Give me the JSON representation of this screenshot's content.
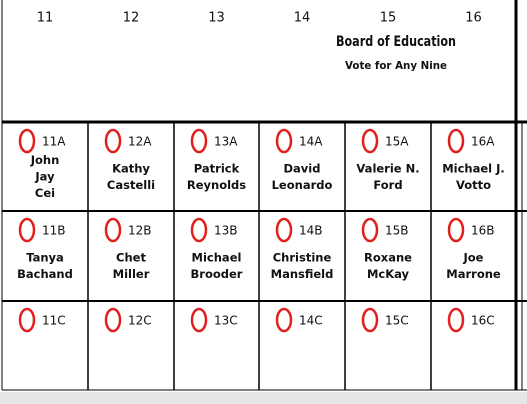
{
  "ballot": {
    "title": "Board of Education",
    "subtitle": "Vote for Any Nine",
    "columns": [
      {
        "number": "11",
        "cells": [
          {
            "code": "11A",
            "name": [
              "John",
              "Jay",
              "Cei"
            ]
          },
          {
            "code": "11B",
            "name": [
              "Tanya",
              "Bachand"
            ]
          },
          {
            "code": "11C",
            "name": []
          }
        ]
      },
      {
        "number": "12",
        "cells": [
          {
            "code": "12A",
            "name": [
              "Kathy",
              "Castelli"
            ]
          },
          {
            "code": "12B",
            "name": [
              "Chet",
              "Miller"
            ]
          },
          {
            "code": "12C",
            "name": []
          }
        ]
      },
      {
        "number": "13",
        "cells": [
          {
            "code": "13A",
            "name": [
              "Patrick",
              "Reynolds"
            ]
          },
          {
            "code": "13B",
            "name": [
              "Michael",
              "Brooder"
            ]
          },
          {
            "code": "13C",
            "name": []
          }
        ]
      },
      {
        "number": "14",
        "cells": [
          {
            "code": "14A",
            "name": [
              "David",
              "Leonardo"
            ]
          },
          {
            "code": "14B",
            "name": [
              "Christine",
              "Mansfield"
            ]
          },
          {
            "code": "14C",
            "name": []
          }
        ]
      },
      {
        "number": "15",
        "cells": [
          {
            "code": "15A",
            "name": [
              "Valerie N.",
              "Ford"
            ]
          },
          {
            "code": "15B",
            "name": [
              "Roxane",
              "McKay"
            ]
          },
          {
            "code": "15C",
            "name": []
          }
        ]
      },
      {
        "number": "16",
        "cells": [
          {
            "code": "16A",
            "name": [
              "Michael J.",
              "Votto"
            ]
          },
          {
            "code": "16B",
            "name": [
              "Joe",
              "Marrone"
            ]
          },
          {
            "code": "16C",
            "name": []
          }
        ]
      }
    ]
  }
}
